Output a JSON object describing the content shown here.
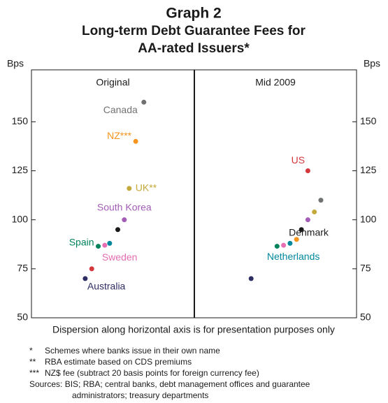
{
  "title": "Graph 2",
  "subtitle": [
    "Long-term Debt Guarantee Fees for",
    "AA-rated Issuers*"
  ],
  "note": "Dispersion along horizontal axis is for presentation purposes only",
  "footnotes": [
    {
      "marker": "*",
      "text": "Schemes where banks issue in their own name"
    },
    {
      "marker": "**",
      "text": "RBA estimate based on CDS premiums"
    },
    {
      "marker": "***",
      "text": "NZ$ fee (subtract 20 basis points for foreign currency fee)"
    }
  ],
  "sources": [
    "Sources: BIS; RBA; central banks, debt management offices and guarantee",
    "administrators; treasury departments"
  ],
  "chart_data": [
    {
      "type": "scatter",
      "title": "Original",
      "ylabel": "Bps",
      "xlim": [
        0,
        10
      ],
      "ylim": [
        50,
        176.5
      ],
      "yticks": [
        50,
        75,
        100,
        125,
        150
      ],
      "points": [
        {
          "label": "Canada",
          "color": "#707173",
          "x": 6.9,
          "y": 160
        },
        {
          "label": "NZ***",
          "color": "#f7941d",
          "x": 6.4,
          "y": 140
        },
        {
          "label": "UK**",
          "color": "#c4a93c",
          "x": 6.0,
          "y": 116
        },
        {
          "label": "South Korea",
          "color": "#a35db6",
          "x": 5.7,
          "y": 100
        },
        {
          "color": "#1a1a1a",
          "x": 5.3,
          "y": 95
        },
        {
          "label": "Spain",
          "color": "#00835a",
          "x": 4.1,
          "y": 86.5
        },
        {
          "label": "Sweden",
          "color": "#e66db2",
          "x": 4.5,
          "y": 87
        },
        {
          "color": "#00879c",
          "x": 4.8,
          "y": 88
        },
        {
          "color": "#d4373c",
          "x": 3.7,
          "y": 75
        },
        {
          "label": "Australia",
          "color": "#2e2d63",
          "x": 3.3,
          "y": 70
        }
      ]
    },
    {
      "type": "scatter",
      "title": "Mid 2009",
      "ylabel": "Bps",
      "xlim": [
        0,
        10
      ],
      "ylim": [
        50,
        176.5
      ],
      "yticks": [
        50,
        75,
        100,
        125,
        150
      ],
      "points": [
        {
          "color": "#2e2d63",
          "x": 3.5,
          "y": 70
        },
        {
          "color": "#00835a",
          "x": 5.1,
          "y": 86.5
        },
        {
          "color": "#e66db2",
          "x": 5.5,
          "y": 87
        },
        {
          "label": "Netherlands",
          "color": "#00879c",
          "x": 5.9,
          "y": 88
        },
        {
          "color": "#f7941d",
          "x": 6.3,
          "y": 90
        },
        {
          "label": "Denmark",
          "color": "#1a1a1a",
          "x": 6.6,
          "y": 95
        },
        {
          "color": "#a35db6",
          "x": 7.0,
          "y": 100
        },
        {
          "color": "#c4a93c",
          "x": 7.4,
          "y": 104
        },
        {
          "color": "#707173",
          "x": 7.8,
          "y": 110
        },
        {
          "label": "US",
          "color": "#d4373c",
          "x": 7.0,
          "y": 125
        }
      ]
    }
  ]
}
